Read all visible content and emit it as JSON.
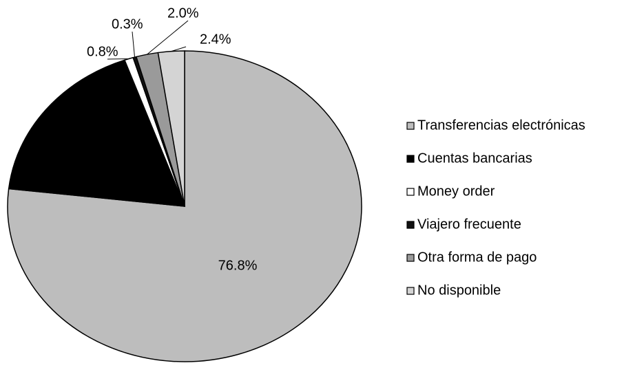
{
  "chart_data": {
    "type": "pie",
    "labels": [
      "Transferencias electrónicas",
      "Cuentas bancarias",
      "Money order",
      "Viajero frecuente",
      "Otra forma de pago",
      "No disponible"
    ],
    "values": [
      76.8,
      17.7,
      0.8,
      0.3,
      2.0,
      2.4
    ],
    "value_labels": [
      "76.8%",
      null,
      "0.8%",
      "0.3%",
      "2.0%",
      "2.4%"
    ],
    "colors": [
      "#bdbdbd",
      "#000000",
      "#ffffff",
      "#111111",
      "#9a9a9a",
      "#d4d4d4"
    ],
    "legend": "right"
  }
}
